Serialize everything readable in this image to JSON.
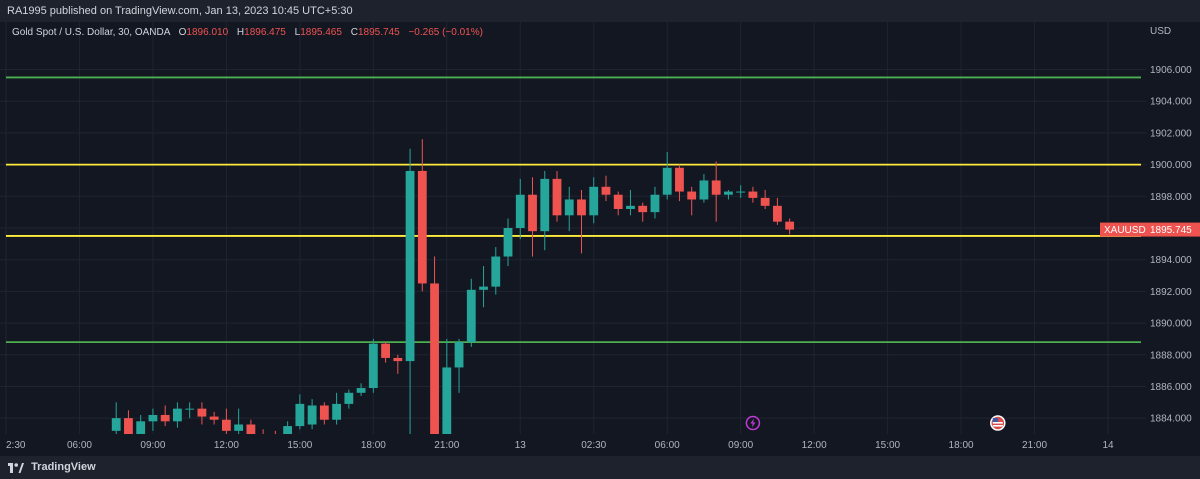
{
  "header": {
    "publisher": "RA1995 published on TradingView.com, Jan 13, 2023 10:45 UTC+5:30"
  },
  "legend": {
    "symbol": "Gold Spot / U.S. Dollar, 30, OANDA",
    "o_label": "O",
    "o": "1896.010",
    "h_label": "H",
    "h": "1896.475",
    "l_label": "L",
    "l": "1895.465",
    "c_label": "C",
    "c": "1895.745",
    "change": "−0.265 (−0.01%)"
  },
  "footer": {
    "brand": "TradingView"
  },
  "colors": {
    "up": "#26a69a",
    "down": "#ef5350",
    "support_resistance_green": "#4caf50",
    "support_resistance_yellow": "#ffeb3b",
    "background": "#131722"
  },
  "events": [
    {
      "name": "lightning-event-icon",
      "time": 30.5
    },
    {
      "name": "us-flag-event-icon",
      "time": 40.5
    }
  ],
  "chart_data": {
    "type": "candlestick",
    "symbol": "XAUUSD",
    "price_label": "1895.745",
    "currency": "USD",
    "ylim": [
      1883.0,
      1909.0
    ],
    "y_ticks": [
      1884,
      1886,
      1888,
      1890,
      1892,
      1894,
      1896,
      1898,
      1900,
      1902,
      1904,
      1906
    ],
    "y_tick_labels": [
      "1884.000",
      "1886.000",
      "1888.000",
      "1890.000",
      "1892.000",
      "1894.000",
      "1896.000",
      "1898.000",
      "1900.000",
      "1902.000",
      "1904.000",
      "1906.000"
    ],
    "x_ticks": [
      {
        "time": 0,
        "label": "2:30"
      },
      {
        "time": 3,
        "label": "06:00"
      },
      {
        "time": 6,
        "label": "09:00"
      },
      {
        "time": 9,
        "label": "12:00"
      },
      {
        "time": 12,
        "label": "15:00"
      },
      {
        "time": 15,
        "label": "18:00"
      },
      {
        "time": 18,
        "label": "21:00"
      },
      {
        "time": 21,
        "label": "13"
      },
      {
        "time": 24,
        "label": "02:30"
      },
      {
        "time": 27,
        "label": "06:00"
      },
      {
        "time": 30,
        "label": "09:00"
      },
      {
        "time": 33,
        "label": "12:00"
      },
      {
        "time": 36,
        "label": "15:00"
      },
      {
        "time": 39,
        "label": "18:00"
      },
      {
        "time": 42,
        "label": "21:00"
      },
      {
        "time": 45,
        "label": "14"
      }
    ],
    "hlines": [
      {
        "price": 1905.5,
        "color": "#4caf50"
      },
      {
        "price": 1900.0,
        "color": "#ffeb3b"
      },
      {
        "price": 1895.5,
        "color": "#ffeb3b"
      },
      {
        "price": 1888.8,
        "color": "#4caf50"
      }
    ],
    "candles": [
      {
        "t": 4.5,
        "o": 1883.2,
        "h": 1885.0,
        "l": 1882.6,
        "c": 1884.0
      },
      {
        "t": 5.0,
        "o": 1884.0,
        "h": 1884.5,
        "l": 1882.5,
        "c": 1882.8
      },
      {
        "t": 5.5,
        "o": 1882.8,
        "h": 1884.2,
        "l": 1882.5,
        "c": 1883.8
      },
      {
        "t": 6.0,
        "o": 1883.8,
        "h": 1884.6,
        "l": 1883.2,
        "c": 1884.2
      },
      {
        "t": 6.5,
        "o": 1884.2,
        "h": 1884.8,
        "l": 1883.5,
        "c": 1883.8
      },
      {
        "t": 7.0,
        "o": 1883.8,
        "h": 1885.0,
        "l": 1883.4,
        "c": 1884.6
      },
      {
        "t": 7.5,
        "o": 1884.6,
        "h": 1885.0,
        "l": 1884.0,
        "c": 1884.6
      },
      {
        "t": 8.0,
        "o": 1884.6,
        "h": 1885.0,
        "l": 1883.6,
        "c": 1884.1
      },
      {
        "t": 8.5,
        "o": 1884.1,
        "h": 1884.4,
        "l": 1883.6,
        "c": 1883.9
      },
      {
        "t": 9.0,
        "o": 1883.9,
        "h": 1884.6,
        "l": 1882.6,
        "c": 1883.2
      },
      {
        "t": 9.5,
        "o": 1883.2,
        "h": 1884.6,
        "l": 1882.6,
        "c": 1883.6
      },
      {
        "t": 10.0,
        "o": 1883.6,
        "h": 1883.9,
        "l": 1882.6,
        "c": 1882.9
      },
      {
        "t": 10.5,
        "o": 1882.9,
        "h": 1883.3,
        "l": 1882.6,
        "c": 1882.8
      },
      {
        "t": 11.0,
        "o": 1882.8,
        "h": 1883.2,
        "l": 1882.3,
        "c": 1882.6
      },
      {
        "t": 11.5,
        "o": 1882.6,
        "h": 1883.8,
        "l": 1882.3,
        "c": 1883.5
      },
      {
        "t": 12.0,
        "o": 1883.5,
        "h": 1885.5,
        "l": 1883.3,
        "c": 1884.9
      },
      {
        "t": 12.5,
        "o": 1883.6,
        "h": 1885.2,
        "l": 1883.3,
        "c": 1884.8
      },
      {
        "t": 13.0,
        "o": 1884.8,
        "h": 1885.0,
        "l": 1883.6,
        "c": 1883.9
      },
      {
        "t": 13.5,
        "o": 1883.9,
        "h": 1885.6,
        "l": 1883.6,
        "c": 1884.9
      },
      {
        "t": 14.0,
        "o": 1884.9,
        "h": 1885.8,
        "l": 1884.6,
        "c": 1885.6
      },
      {
        "t": 14.5,
        "o": 1885.6,
        "h": 1886.2,
        "l": 1885.4,
        "c": 1885.9
      },
      {
        "t": 15.0,
        "o": 1885.9,
        "h": 1889.0,
        "l": 1885.6,
        "c": 1888.7
      },
      {
        "t": 15.5,
        "o": 1888.7,
        "h": 1888.8,
        "l": 1887.5,
        "c": 1887.8
      },
      {
        "t": 16.0,
        "o": 1887.8,
        "h": 1888.0,
        "l": 1886.8,
        "c": 1887.6
      },
      {
        "t": 16.5,
        "o": 1887.6,
        "h": 1901.0,
        "l": 1882.6,
        "c": 1899.6
      },
      {
        "t": 17.0,
        "o": 1899.6,
        "h": 1901.6,
        "l": 1892.0,
        "c": 1892.5
      },
      {
        "t": 17.5,
        "o": 1892.5,
        "h": 1894.2,
        "l": 1882.0,
        "c": 1882.4
      },
      {
        "t": 18.0,
        "o": 1882.4,
        "h": 1889.0,
        "l": 1882.0,
        "c": 1887.2
      },
      {
        "t": 18.5,
        "o": 1887.2,
        "h": 1889.0,
        "l": 1885.6,
        "c": 1888.8
      },
      {
        "t": 19.0,
        "o": 1888.8,
        "h": 1892.8,
        "l": 1888.5,
        "c": 1892.1
      },
      {
        "t": 19.5,
        "o": 1892.1,
        "h": 1893.6,
        "l": 1891.0,
        "c": 1892.3
      },
      {
        "t": 20.0,
        "o": 1892.3,
        "h": 1894.8,
        "l": 1891.8,
        "c": 1894.2
      },
      {
        "t": 20.5,
        "o": 1894.2,
        "h": 1896.6,
        "l": 1893.6,
        "c": 1896.0
      },
      {
        "t": 21.0,
        "o": 1896.0,
        "h": 1899.1,
        "l": 1895.3,
        "c": 1898.1
      },
      {
        "t": 21.5,
        "o": 1898.1,
        "h": 1899.2,
        "l": 1894.2,
        "c": 1895.8
      },
      {
        "t": 22.0,
        "o": 1895.8,
        "h": 1899.6,
        "l": 1894.6,
        "c": 1899.1
      },
      {
        "t": 22.5,
        "o": 1899.1,
        "h": 1899.6,
        "l": 1896.4,
        "c": 1896.8
      },
      {
        "t": 23.0,
        "o": 1896.8,
        "h": 1898.6,
        "l": 1895.8,
        "c": 1897.8
      },
      {
        "t": 23.5,
        "o": 1897.8,
        "h": 1898.4,
        "l": 1894.4,
        "c": 1896.8
      },
      {
        "t": 24.0,
        "o": 1896.8,
        "h": 1899.2,
        "l": 1896.3,
        "c": 1898.6
      },
      {
        "t": 24.5,
        "o": 1898.6,
        "h": 1899.3,
        "l": 1897.7,
        "c": 1898.1
      },
      {
        "t": 25.0,
        "o": 1898.1,
        "h": 1898.3,
        "l": 1896.8,
        "c": 1897.2
      },
      {
        "t": 25.5,
        "o": 1897.2,
        "h": 1898.4,
        "l": 1896.8,
        "c": 1897.4
      },
      {
        "t": 26.0,
        "o": 1897.4,
        "h": 1897.6,
        "l": 1896.4,
        "c": 1897.0
      },
      {
        "t": 26.5,
        "o": 1897.0,
        "h": 1898.6,
        "l": 1896.6,
        "c": 1898.1
      },
      {
        "t": 27.0,
        "o": 1898.1,
        "h": 1900.8,
        "l": 1897.8,
        "c": 1899.8
      },
      {
        "t": 27.5,
        "o": 1899.8,
        "h": 1900.0,
        "l": 1897.7,
        "c": 1898.3
      },
      {
        "t": 28.0,
        "o": 1898.3,
        "h": 1898.6,
        "l": 1896.8,
        "c": 1897.8
      },
      {
        "t": 28.5,
        "o": 1897.8,
        "h": 1899.4,
        "l": 1897.6,
        "c": 1899.0
      },
      {
        "t": 29.0,
        "o": 1899.0,
        "h": 1900.2,
        "l": 1896.4,
        "c": 1898.1
      },
      {
        "t": 29.5,
        "o": 1898.1,
        "h": 1898.4,
        "l": 1897.8,
        "c": 1898.3
      },
      {
        "t": 30.0,
        "o": 1898.3,
        "h": 1898.7,
        "l": 1897.9,
        "c": 1898.3
      },
      {
        "t": 30.5,
        "o": 1898.3,
        "h": 1898.6,
        "l": 1897.6,
        "c": 1897.9
      },
      {
        "t": 31.0,
        "o": 1897.9,
        "h": 1898.4,
        "l": 1897.2,
        "c": 1897.4
      },
      {
        "t": 31.5,
        "o": 1897.4,
        "h": 1897.9,
        "l": 1896.2,
        "c": 1896.4
      },
      {
        "t": 32.0,
        "o": 1896.4,
        "h": 1896.6,
        "l": 1895.6,
        "c": 1895.9
      }
    ]
  }
}
